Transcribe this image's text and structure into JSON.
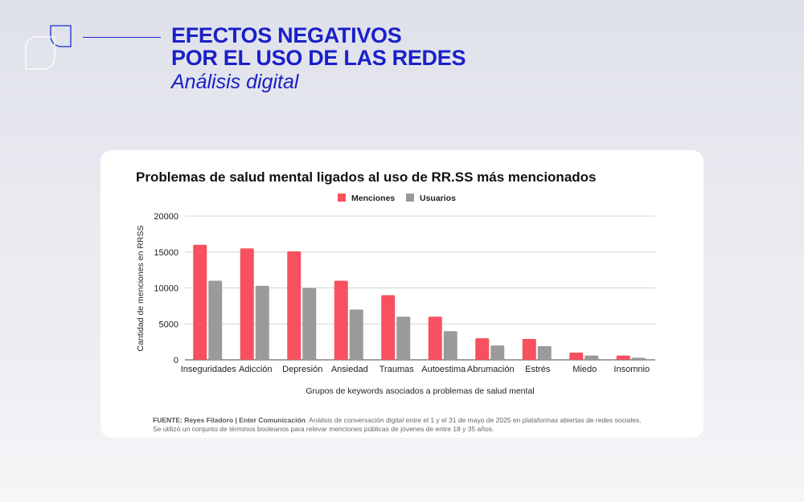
{
  "header": {
    "title_line1": "EFECTOS NEGATIVOS",
    "title_line2": "POR EL USO DE LAS REDES",
    "subtitle": "Análisis digital"
  },
  "chart_data": {
    "type": "bar",
    "title": "Problemas de salud mental ligados al uso de RR.SS más mencionados",
    "xlabel": "Grupos de keywords asociados a problemas de salud mental",
    "ylabel": "Cantidad de menciones en RRSS",
    "ylim": [
      0,
      20000
    ],
    "yticks": [
      0,
      5000,
      10000,
      15000,
      20000
    ],
    "legend_position": "top-center",
    "categories": [
      "Inseguridades",
      "Adicción",
      "Depresión",
      "Ansiedad",
      "Traumas",
      "Autoestima",
      "Abrumación",
      "Estrés",
      "Miedo",
      "Insomnio"
    ],
    "series": [
      {
        "name": "Menciones",
        "color": "#f7505e",
        "values": [
          16000,
          15500,
          15100,
          11000,
          9000,
          6000,
          3000,
          2900,
          1000,
          600
        ]
      },
      {
        "name": "Usuarios",
        "color": "#9a9a9a",
        "values": [
          11000,
          10300,
          10000,
          7000,
          6000,
          4000,
          2000,
          1900,
          600,
          300
        ]
      }
    ]
  },
  "source": {
    "bold": "FUENTE: Reyes Filadoro | Enter Comunicación",
    "text": ". Análisis de conversación digital entre el 1 y el 31 de mayo de 2025 en plataformas abiertas de redes sociales. Se utilizó un conjunto de términos booleanos para relevar menciones públicas de jóvenes de entre 18 y 35 años."
  }
}
